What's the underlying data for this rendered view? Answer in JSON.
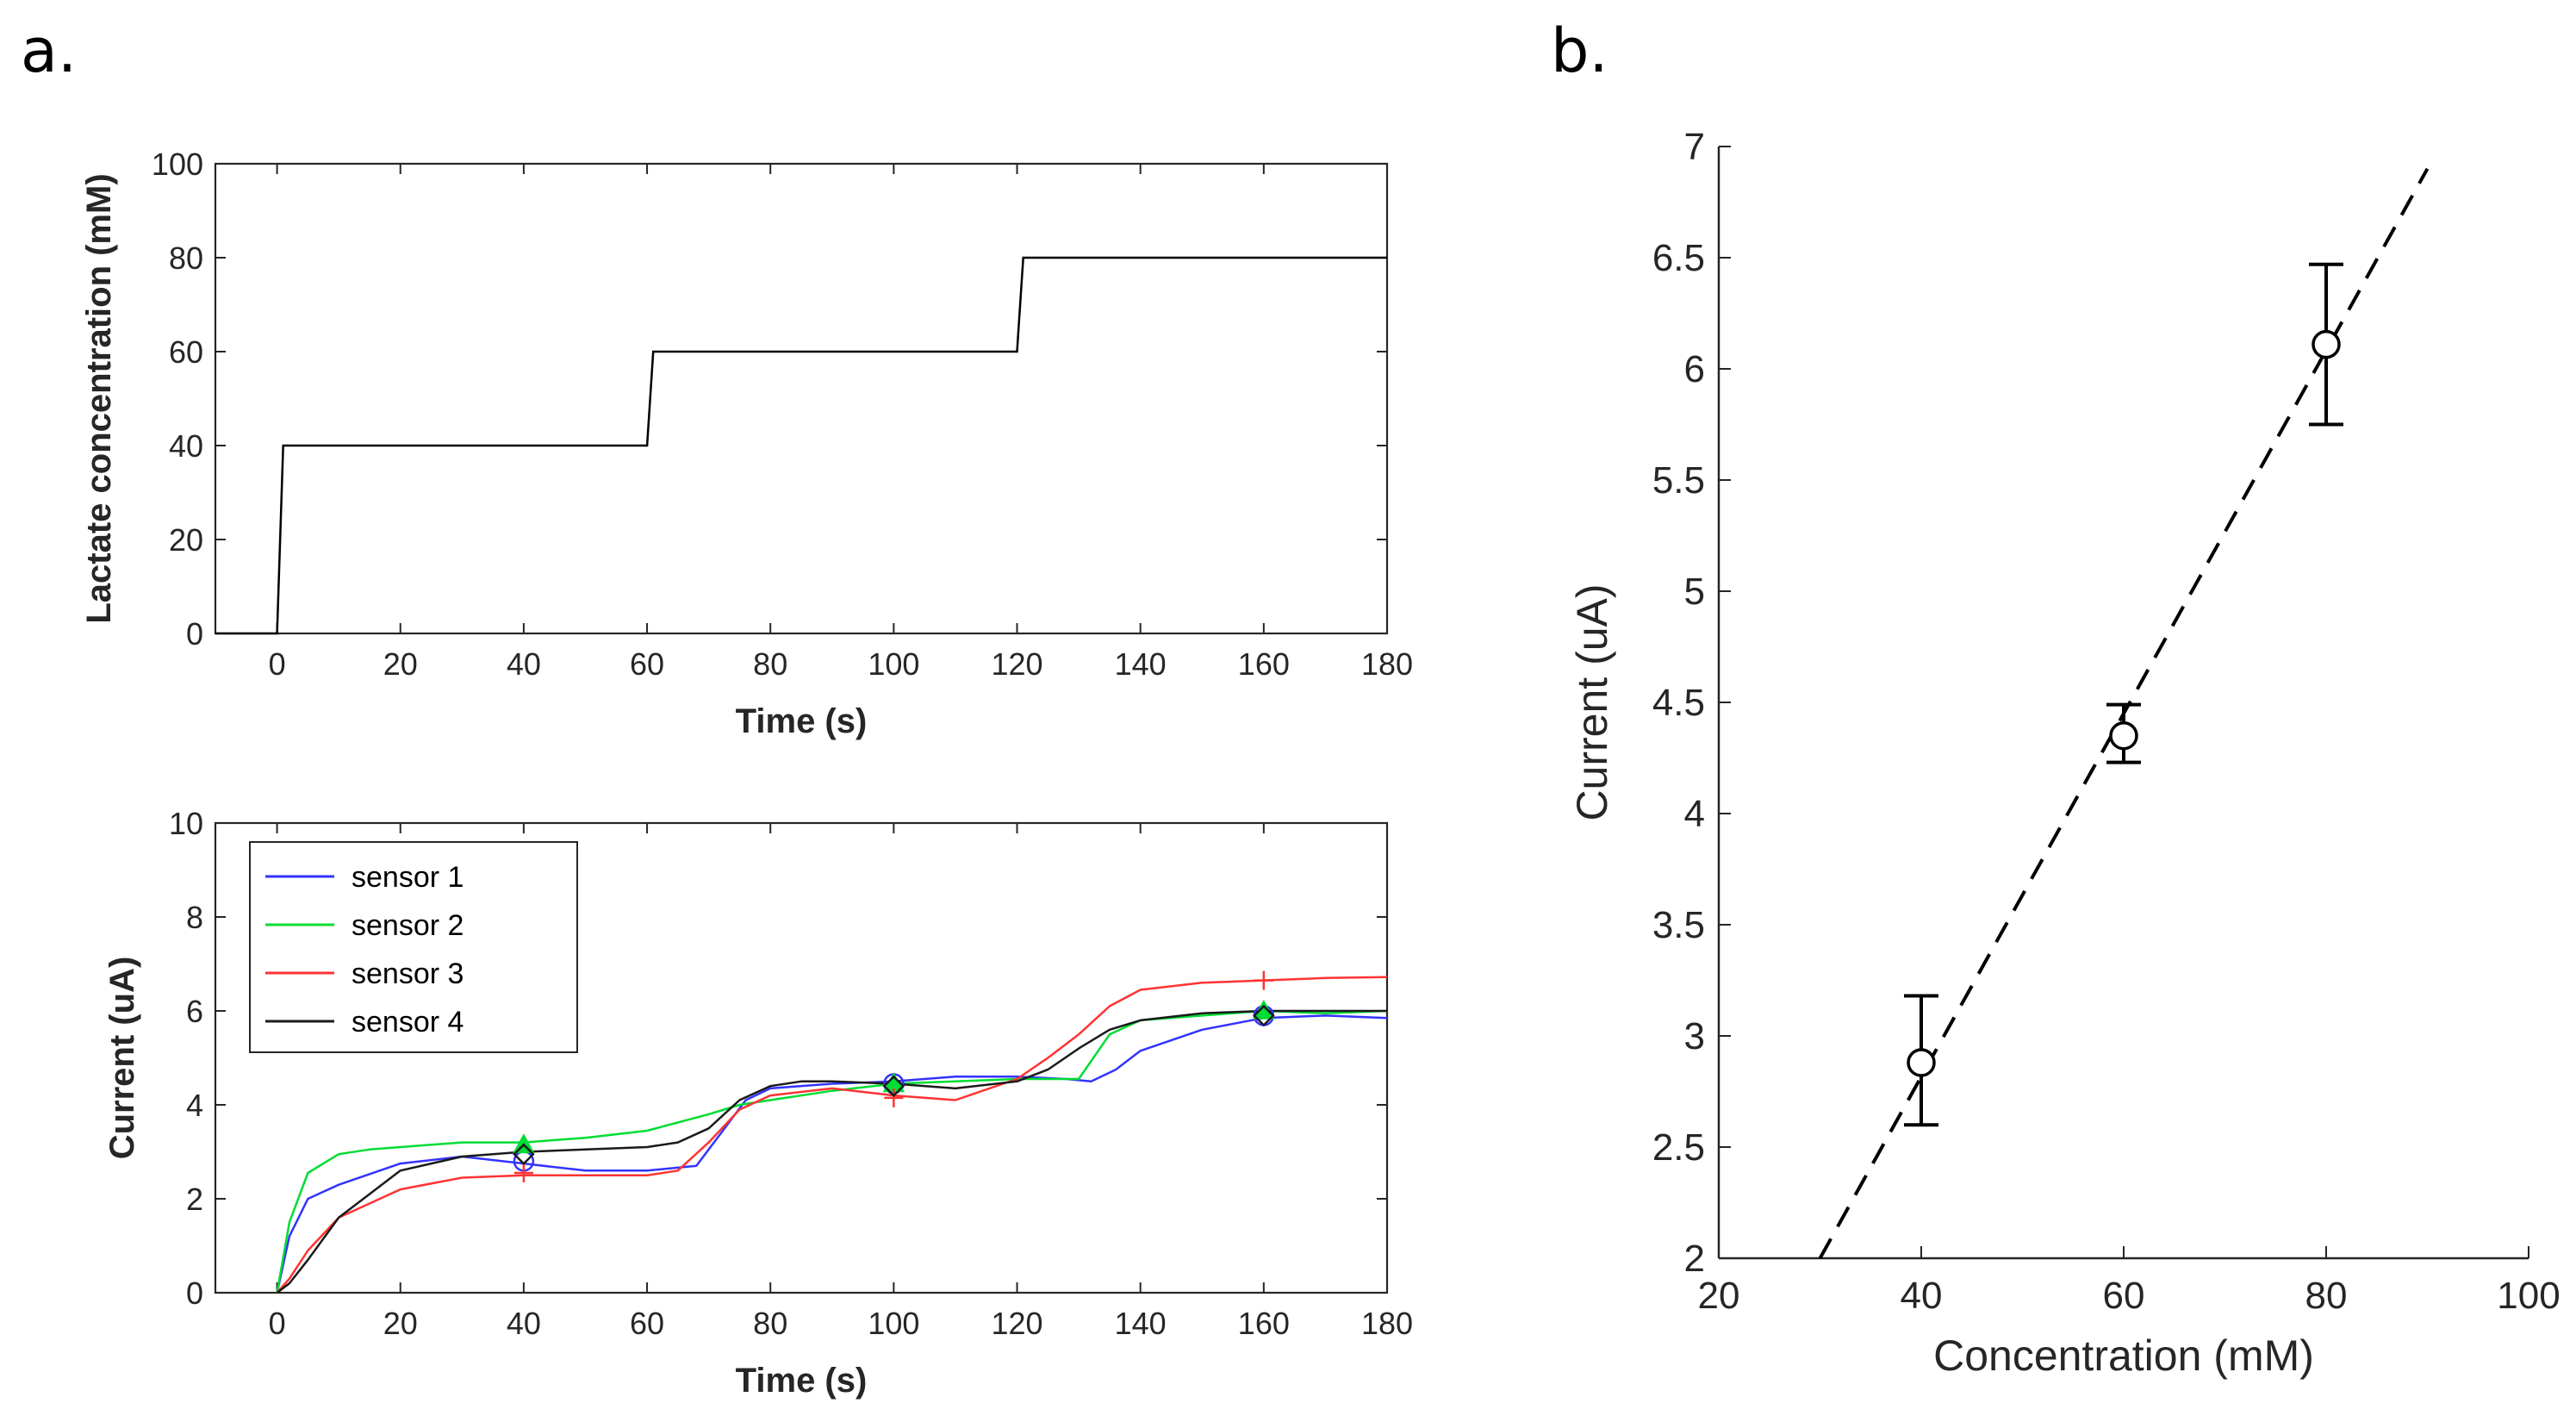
{
  "panel_labels": {
    "a": "a.",
    "b": "b."
  },
  "chart_data": [
    {
      "id": "a_top",
      "type": "line",
      "title": "",
      "xlabel": "Time (s)",
      "ylabel": "Lactate concentration (mM)",
      "xlim": [
        -10,
        180
      ],
      "ylim": [
        0,
        100
      ],
      "xticks": [
        0,
        20,
        40,
        60,
        80,
        100,
        120,
        140,
        160,
        180
      ],
      "yticks": [
        0,
        20,
        40,
        60,
        80,
        100
      ],
      "grid": false,
      "series": [
        {
          "name": "concentration",
          "color": "#000000",
          "x": [
            -10,
            0,
            1,
            60,
            61,
            120,
            121,
            180
          ],
          "y": [
            0,
            0,
            40,
            40,
            60,
            60,
            80,
            80
          ]
        }
      ]
    },
    {
      "id": "a_bottom",
      "type": "line",
      "title": "",
      "xlabel": "Time (s)",
      "ylabel": "Current (uA)",
      "xlim": [
        -10,
        180
      ],
      "ylim": [
        0,
        10
      ],
      "xticks": [
        0,
        20,
        40,
        60,
        80,
        100,
        120,
        140,
        160,
        180
      ],
      "yticks": [
        0,
        2,
        4,
        6,
        8,
        10
      ],
      "grid": false,
      "legend_position": "top-left",
      "series": [
        {
          "name": "sensor 1",
          "color": "#3333ff",
          "marker": "circle",
          "x": [
            0,
            2,
            5,
            10,
            20,
            30,
            40,
            50,
            60,
            68,
            72,
            76,
            80,
            90,
            100,
            110,
            120,
            128,
            132,
            136,
            140,
            150,
            160,
            170,
            180
          ],
          "y": [
            0,
            1.2,
            2.0,
            2.3,
            2.75,
            2.9,
            2.75,
            2.6,
            2.6,
            2.7,
            3.4,
            4.1,
            4.35,
            4.45,
            4.5,
            4.6,
            4.6,
            4.55,
            4.5,
            4.75,
            5.15,
            5.6,
            5.85,
            5.9,
            5.85
          ],
          "markers": [
            [
              40,
              2.8
            ],
            [
              100,
              4.45
            ],
            [
              160,
              5.9
            ]
          ]
        },
        {
          "name": "sensor 2",
          "color": "#00dd33",
          "marker": "triangle",
          "x": [
            0,
            2,
            5,
            10,
            15,
            20,
            30,
            40,
            50,
            60,
            70,
            75,
            80,
            90,
            100,
            110,
            120,
            125,
            130,
            135,
            140,
            150,
            160,
            170,
            180
          ],
          "y": [
            0,
            1.5,
            2.55,
            2.95,
            3.05,
            3.1,
            3.2,
            3.2,
            3.3,
            3.45,
            3.8,
            4.0,
            4.1,
            4.3,
            4.45,
            4.5,
            4.55,
            4.55,
            4.55,
            5.5,
            5.8,
            5.9,
            6.0,
            5.95,
            6.0
          ],
          "markers": [
            [
              40,
              3.15
            ],
            [
              100,
              4.45
            ],
            [
              160,
              6.0
            ]
          ]
        },
        {
          "name": "sensor 3",
          "color": "#ff3333",
          "marker": "plus",
          "x": [
            0,
            2,
            5,
            10,
            20,
            30,
            40,
            50,
            60,
            65,
            70,
            75,
            80,
            90,
            100,
            110,
            120,
            125,
            130,
            135,
            140,
            150,
            160,
            170,
            180
          ],
          "y": [
            0,
            0.3,
            0.9,
            1.6,
            2.2,
            2.45,
            2.5,
            2.5,
            2.5,
            2.6,
            3.2,
            3.9,
            4.2,
            4.35,
            4.2,
            4.1,
            4.55,
            5.0,
            5.5,
            6.1,
            6.45,
            6.6,
            6.65,
            6.7,
            6.72
          ],
          "markers": [
            [
              40,
              2.55
            ],
            [
              100,
              4.15
            ],
            [
              160,
              6.65
            ]
          ]
        },
        {
          "name": "sensor 4",
          "color": "#1a1a1a",
          "marker": "diamond",
          "x": [
            0,
            2,
            5,
            10,
            20,
            30,
            40,
            50,
            60,
            65,
            70,
            75,
            80,
            85,
            90,
            100,
            110,
            120,
            125,
            130,
            135,
            140,
            150,
            160,
            170,
            180
          ],
          "y": [
            0,
            0.2,
            0.7,
            1.6,
            2.6,
            2.9,
            3.0,
            3.05,
            3.1,
            3.2,
            3.5,
            4.1,
            4.4,
            4.5,
            4.5,
            4.45,
            4.35,
            4.5,
            4.75,
            5.2,
            5.6,
            5.8,
            5.95,
            6.0,
            6.0,
            6.0
          ],
          "markers": [
            [
              40,
              2.95
            ],
            [
              100,
              4.4
            ],
            [
              160,
              5.9
            ]
          ]
        }
      ]
    },
    {
      "id": "b",
      "type": "scatter",
      "title": "",
      "xlabel": "Concentration (mM)",
      "ylabel": "Current (uA)",
      "xlim": [
        20,
        100
      ],
      "ylim": [
        2,
        7
      ],
      "xticks": [
        20,
        40,
        60,
        80,
        100
      ],
      "yticks": [
        2,
        2.5,
        3,
        3.5,
        4,
        4.5,
        5,
        5.5,
        6,
        6.5,
        7
      ],
      "grid": false,
      "points": [
        {
          "x": 40,
          "y": 2.88,
          "err_low": 2.6,
          "err_high": 3.18
        },
        {
          "x": 60,
          "y": 4.35,
          "err_low": 4.23,
          "err_high": 4.49
        },
        {
          "x": 80,
          "y": 6.11,
          "err_low": 5.75,
          "err_high": 6.47
        }
      ],
      "fit_line": {
        "style": "dashed",
        "x": [
          30,
          90
        ],
        "y": [
          2.0,
          6.9
        ]
      }
    }
  ]
}
